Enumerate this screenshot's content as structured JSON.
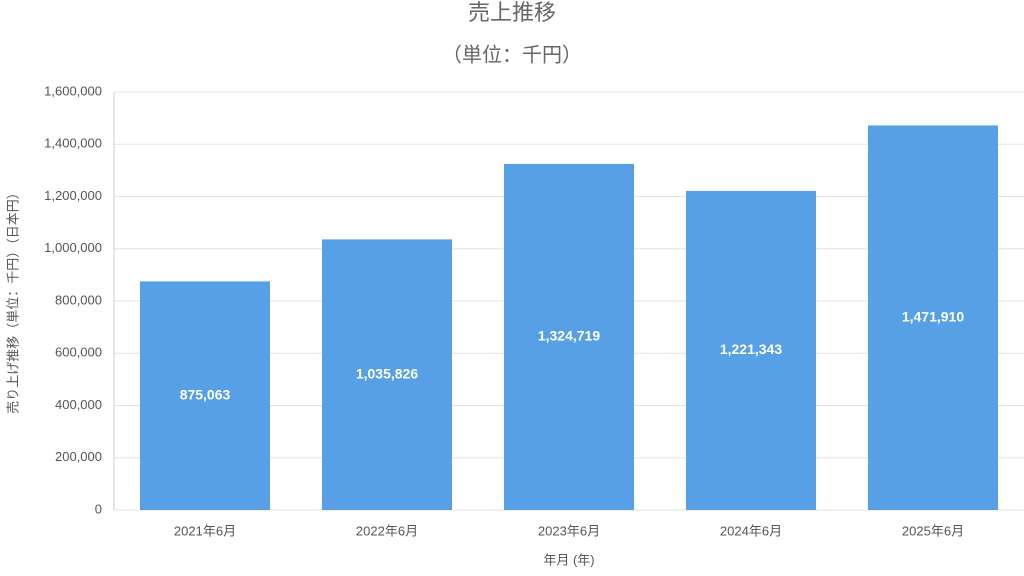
{
  "chart_data": {
    "type": "bar",
    "title": "売上推移",
    "subtitle": "（単位：千円）",
    "x_label": "年月 (年)",
    "y_label": "売り上げ推移（単位：千円）（日本円）",
    "categories": [
      "2021年6月",
      "2022年6月",
      "2023年6月",
      "2024年6月",
      "2025年6月"
    ],
    "values": [
      875063,
      1035826,
      1324719,
      1221343,
      1471910
    ],
    "value_labels": [
      "875,063",
      "1,035,826",
      "1,324,719",
      "1,221,343",
      "1,471,910"
    ],
    "color": "#57a0e5",
    "ylim": [
      0,
      1600000
    ],
    "yticks": [
      0,
      {
        "value": 200000,
        "label": "200,000"
      },
      {
        "value": 400000,
        "label": "400,000"
      },
      {
        "value": 600000,
        "label": "600,000"
      },
      {
        "value": 800000,
        "label": "800,000"
      },
      {
        "value": 1000000,
        "label": "1,000,000"
      },
      {
        "value": 1200000,
        "label": "1,200,000"
      },
      {
        "value": 1400000,
        "label": "1,400,000"
      },
      {
        "value": 1600000,
        "label": "1,600,000"
      }
    ],
    "grid": true
  }
}
